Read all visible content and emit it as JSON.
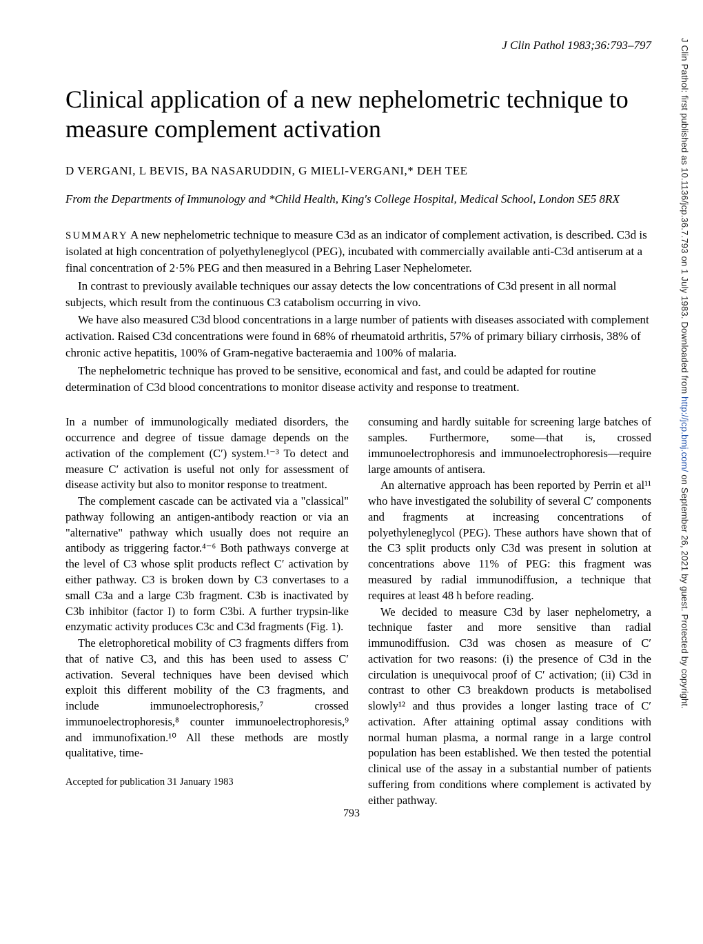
{
  "journal_header": "J Clin Pathol 1983;36:793–797",
  "title": "Clinical application of a new nephelometric technique to measure complement activation",
  "authors": "D VERGANI, L BEVIS, BA NASARUDDIN, G MIELI-VERGANI,* DEH TEE",
  "affiliation": "From the Departments of Immunology and *Child Health, King's College Hospital, Medical School, London SE5 8RX",
  "summary": {
    "label": "SUMMARY",
    "p1": " A new nephelometric technique to measure C3d as an indicator of complement activation, is described. C3d is isolated at high concentration of polyethyleneglycol (PEG), incubated with commercially available anti-C3d antiserum at a final concentration of 2·5% PEG and then measured in a Behring Laser Nephelometer.",
    "p2": "In contrast to previously available techniques our assay detects the low concentrations of C3d present in all normal subjects, which result from the continuous C3 catabolism occurring in vivo.",
    "p3": "We have also measured C3d blood concentrations in a large number of patients with diseases associated with complement activation. Raised C3d concentrations were found in 68% of rheumatoid arthritis, 57% of primary biliary cirrhosis, 38% of chronic active hepatitis, 100% of Gram-negative bacteraemia and 100% of malaria.",
    "p4": "The nephelometric technique has proved to be sensitive, economical and fast, and could be adapted for routine determination of C3d blood concentrations to monitor disease activity and response to treatment."
  },
  "left_col": {
    "p1": "In a number of immunologically mediated disorders, the occurrence and degree of tissue damage depends on the activation of the complement (C′) system.¹⁻³ To detect and measure C′ activation is useful not only for assessment of disease activity but also to monitor response to treatment.",
    "p2": "The complement cascade can be activated via a \"classical\" pathway following an antigen-antibody reaction or via an \"alternative\" pathway which usually does not require an antibody as triggering factor.⁴⁻⁶ Both pathways converge at the level of C3 whose split products reflect C′ activation by either pathway. C3 is broken down by C3 convertases to a small C3a and a large C3b fragment. C3b is inactivated by C3b inhibitor (factor I) to form C3bi. A further trypsin-like enzymatic activity produces C3c and C3d fragments (Fig. 1).",
    "p3": "The eletrophoretical mobility of C3 fragments differs from that of native C3, and this has been used to assess C′ activation. Several techniques have been devised which exploit this different mobility of the C3 fragments, and include immunoelectrophoresis,⁷ crossed immunoelectrophoresis,⁸ counter immunoelectrophoresis,⁹ and immunofixation.¹⁰ All these methods are mostly qualitative, time-",
    "accepted": "Accepted for publication 31 January 1983"
  },
  "right_col": {
    "p1": "consuming and hardly suitable for screening large batches of samples. Furthermore, some—that is, crossed immunoelectrophoresis and immunoelectrophoresis—require large amounts of antisera.",
    "p2": "An alternative approach has been reported by Perrin et al¹¹ who have investigated the solubility of several C′ components and fragments at increasing concentrations of polyethyleneglycol (PEG). These authors have shown that of the C3 split products only C3d was present in solution at concentrations above 11% of PEG: this fragment was measured by radial immunodiffusion, a technique that requires at least 48 h before reading.",
    "p3": "We decided to measure C3d by laser nephelometry, a technique faster and more sensitive than radial immunodiffusion. C3d was chosen as measure of C′ activation for two reasons: (i) the presence of C3d in the circulation is unequivocal proof of C′ activation; (ii) C3d in contrast to other C3 breakdown products is metabolised slowly¹² and thus provides a longer lasting trace of C′ activation. After attaining optimal assay conditions with normal human plasma, a normal range in a large control population has been established. We then tested the potential clinical use of the assay in a substantial number of patients suffering from conditions where complement is activated by either pathway."
  },
  "page_number": "793",
  "sidebar": {
    "prefix": "J Clin Pathol: first published as 10.1136/jcp.36.7.793 on 1 July 1983. Downloaded from ",
    "link_text": "http://jcp.bmj.com/",
    "suffix": " on September 26, 2021 by guest. Protected by copyright."
  }
}
